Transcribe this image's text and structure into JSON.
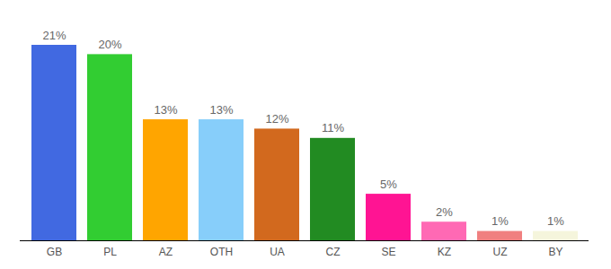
{
  "chart_data": {
    "type": "bar",
    "categories": [
      "GB",
      "PL",
      "AZ",
      "OTH",
      "UA",
      "CZ",
      "SE",
      "KZ",
      "UZ",
      "BY"
    ],
    "values": [
      21,
      20,
      13,
      13,
      12,
      11,
      5,
      2,
      1,
      1
    ],
    "value_labels": [
      "21%",
      "20%",
      "13%",
      "13%",
      "12%",
      "11%",
      "5%",
      "2%",
      "1%",
      "1%"
    ],
    "colors": [
      "#4169e1",
      "#32cd32",
      "#ffa500",
      "#87cefa",
      "#d2691e",
      "#228b22",
      "#ff1493",
      "#ff69b4",
      "#f08080",
      "#f5f5dc"
    ],
    "data_labels": true,
    "tick_labels": "x",
    "grid": false
  }
}
